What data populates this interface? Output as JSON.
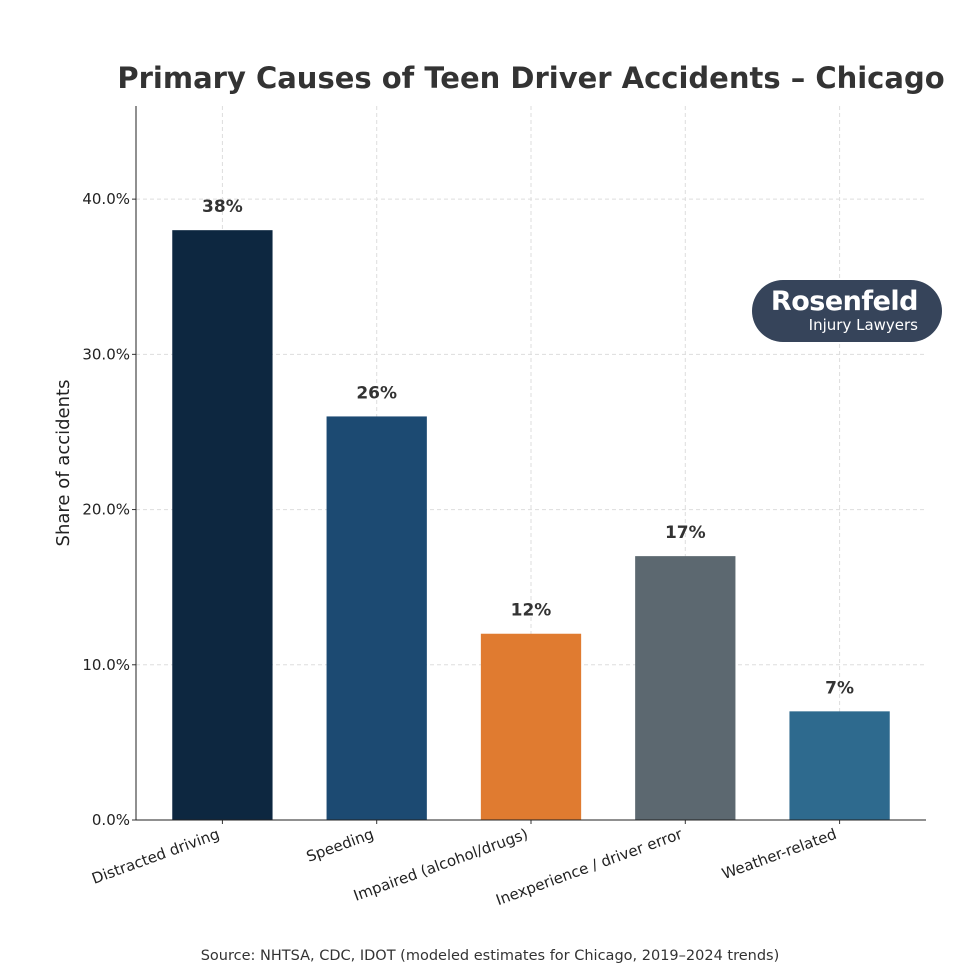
{
  "chart_data": {
    "type": "bar",
    "title": "Primary Causes of Teen Driver Accidents – Chicago",
    "xlabel": "",
    "ylabel": "Share of accidents",
    "categories": [
      "Distracted driving",
      "Speeding",
      "Impaired (alcohol/drugs)",
      "Inexperience / driver error",
      "Weather-related"
    ],
    "values": [
      38,
      26,
      12,
      17,
      7
    ],
    "data_labels": [
      "38%",
      "26%",
      "12%",
      "17%",
      "7%"
    ],
    "colors": [
      "#0d2740",
      "#1c4a72",
      "#e07b30",
      "#5c6870",
      "#2e6a8e"
    ],
    "ylim": [
      0,
      46
    ],
    "yticks": [
      0,
      10,
      20,
      30,
      40
    ],
    "ytick_labels": [
      "0.0%",
      "10.0%",
      "20.0%",
      "30.0%",
      "40.0%"
    ],
    "grid": true,
    "source": "Source: NHTSA, CDC, IDOT (modeled estimates for Chicago, 2019–2024 trends)"
  },
  "logo": {
    "name": "Rosenfeld",
    "tagline": "Injury Lawyers",
    "color": "#36445a"
  }
}
